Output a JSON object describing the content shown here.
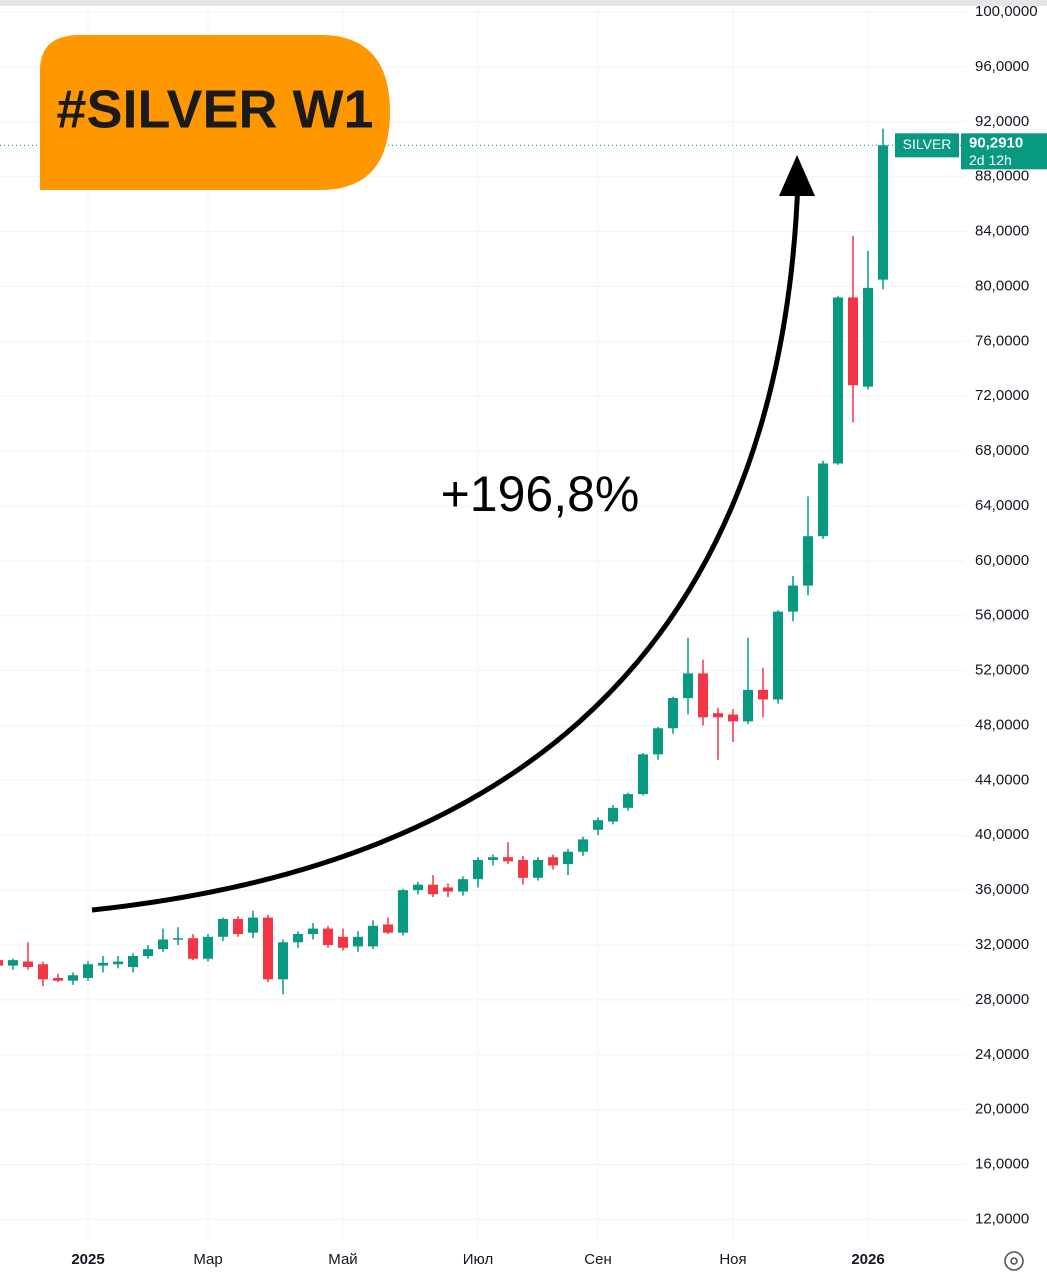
{
  "chart_data": {
    "type": "candlestick",
    "title": "#SILVER W1",
    "annotation": "+196,8%",
    "categories": [
      null,
      null,
      null,
      null,
      null,
      null,
      "2025",
      null,
      null,
      null,
      null,
      null,
      null,
      null,
      "Мар",
      null,
      null,
      null,
      null,
      null,
      null,
      null,
      null,
      "Май",
      null,
      null,
      null,
      null,
      null,
      null,
      null,
      null,
      "Июл",
      null,
      null,
      null,
      null,
      null,
      null,
      null,
      "Сен",
      null,
      null,
      null,
      null,
      null,
      null,
      null,
      null,
      "Ноя",
      null,
      null,
      null,
      null,
      null,
      null,
      null,
      null,
      "2026",
      null
    ],
    "series": [
      {
        "name": "SILVER",
        "open": [
          30.9,
          30.5,
          30.8,
          30.6,
          29.6,
          29.4,
          29.6,
          30.5,
          30.6,
          30.4,
          31.2,
          31.7,
          32.4,
          32.5,
          31.0,
          32.6,
          33.9,
          32.9,
          34.0,
          29.5,
          32.2,
          32.8,
          33.2,
          32.6,
          31.9,
          31.9,
          33.5,
          32.9,
          36.0,
          36.4,
          36.2,
          35.9,
          36.8,
          38.2,
          38.4,
          38.2,
          36.9,
          38.4,
          37.9,
          38.8,
          40.4,
          41.0,
          42.0,
          43.0,
          45.9,
          47.8,
          50.0,
          51.8,
          48.9,
          48.8,
          48.3,
          50.6,
          49.9,
          56.3,
          58.2,
          61.8,
          67.1,
          79.2,
          72.7,
          80.5
        ],
        "high": [
          31.2,
          31.0,
          32.2,
          30.8,
          29.9,
          30.0,
          30.8,
          31.2,
          31.2,
          31.4,
          32.0,
          33.2,
          33.3,
          32.8,
          32.8,
          34.0,
          34.1,
          34.5,
          34.2,
          32.4,
          33.0,
          33.6,
          33.4,
          33.2,
          33.0,
          33.8,
          34.0,
          36.1,
          36.6,
          37.1,
          36.5,
          37.0,
          38.4,
          38.6,
          39.5,
          38.5,
          38.4,
          38.6,
          39.0,
          39.9,
          41.3,
          42.2,
          43.1,
          46.0,
          47.9,
          50.1,
          54.4,
          52.8,
          49.3,
          49.2,
          54.4,
          52.2,
          56.4,
          58.9,
          64.7,
          67.3,
          79.3,
          83.7,
          82.6,
          91.5
        ],
        "low": [
          30.3,
          30.2,
          30.2,
          29.0,
          29.3,
          29.1,
          29.4,
          30.0,
          30.3,
          30.0,
          31.0,
          31.5,
          32.0,
          30.9,
          30.8,
          32.3,
          32.6,
          32.5,
          29.3,
          28.4,
          31.8,
          32.4,
          31.8,
          31.6,
          31.5,
          31.7,
          32.8,
          32.7,
          35.7,
          35.5,
          35.5,
          35.6,
          36.2,
          37.8,
          37.9,
          36.4,
          36.7,
          37.5,
          37.1,
          38.5,
          40.0,
          40.8,
          41.8,
          42.9,
          45.5,
          47.4,
          48.8,
          48.0,
          45.5,
          46.8,
          48.1,
          48.6,
          49.6,
          55.6,
          57.5,
          61.6,
          67.0,
          70.1,
          72.5,
          79.8
        ],
        "close": [
          30.5,
          30.9,
          30.4,
          29.5,
          29.4,
          29.8,
          30.6,
          30.7,
          30.8,
          31.2,
          31.7,
          32.4,
          32.5,
          31.0,
          32.6,
          33.9,
          32.8,
          34.0,
          29.5,
          32.2,
          32.8,
          33.2,
          32.0,
          31.8,
          32.6,
          33.4,
          32.9,
          36.0,
          36.4,
          35.7,
          35.9,
          36.8,
          38.2,
          38.4,
          38.1,
          36.9,
          38.2,
          37.8,
          38.8,
          39.7,
          41.1,
          42.0,
          43.0,
          45.9,
          47.8,
          50.0,
          51.8,
          48.6,
          48.6,
          48.3,
          50.6,
          49.9,
          56.3,
          58.2,
          61.8,
          67.1,
          79.2,
          72.8,
          79.9,
          90.291
        ]
      }
    ],
    "up_color": "#089981",
    "down_color": "#f23645",
    "ylim": [
      10.5,
      100.3
    ],
    "yticks": [
      {
        "value": 12,
        "label": "12,0000"
      },
      {
        "value": 16,
        "label": "16,0000"
      },
      {
        "value": 20,
        "label": "20,0000"
      },
      {
        "value": 24,
        "label": "24,0000"
      },
      {
        "value": 28,
        "label": "28,0000"
      },
      {
        "value": 32,
        "label": "32,0000"
      },
      {
        "value": 36,
        "label": "36,0000"
      },
      {
        "value": 40,
        "label": "40,0000"
      },
      {
        "value": 44,
        "label": "44,0000"
      },
      {
        "value": 48,
        "label": "48,0000"
      },
      {
        "value": 52,
        "label": "52,0000"
      },
      {
        "value": 56,
        "label": "56,0000"
      },
      {
        "value": 60,
        "label": "60,0000"
      },
      {
        "value": 64,
        "label": "64,0000"
      },
      {
        "value": 68,
        "label": "68,0000"
      },
      {
        "value": 72,
        "label": "72,0000"
      },
      {
        "value": 76,
        "label": "76,0000"
      },
      {
        "value": 80,
        "label": "80,0000"
      },
      {
        "value": 84,
        "label": "84,0000"
      },
      {
        "value": 88,
        "label": "88,0000"
      },
      {
        "value": 92,
        "label": "92,0000"
      },
      {
        "value": 96,
        "label": "96,0000"
      },
      {
        "value": 100,
        "label": "100,0000"
      }
    ],
    "grid": true,
    "last_price_label": "90,2910",
    "countdown": "2d 12h"
  }
}
